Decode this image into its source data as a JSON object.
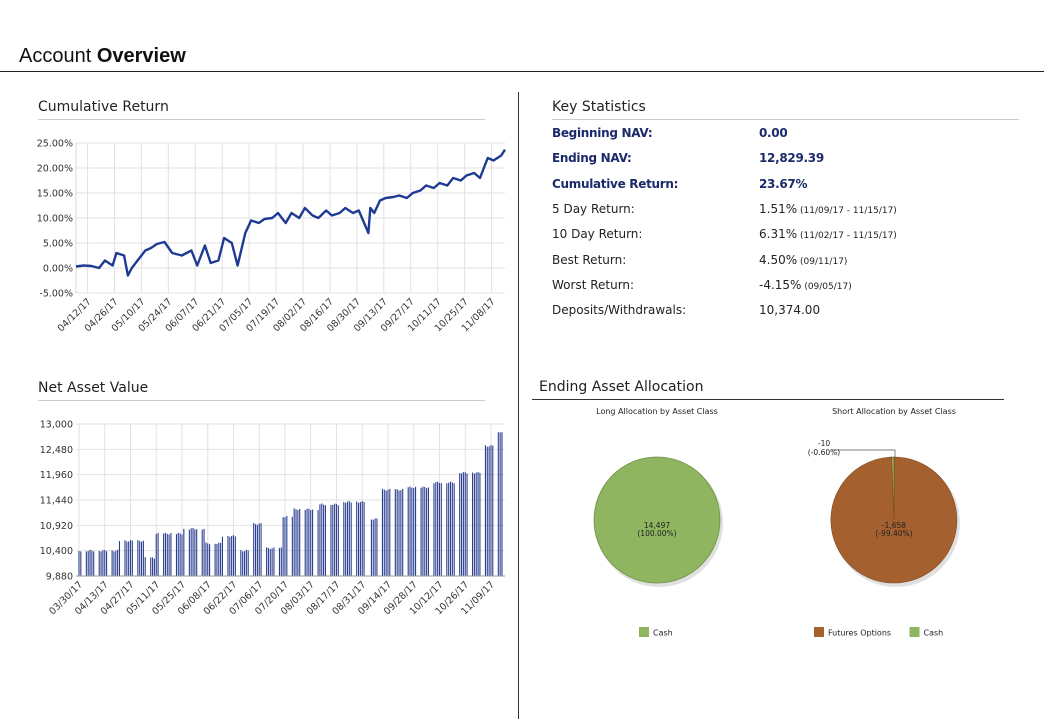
{
  "page": {
    "title_normal": "Account",
    "title_bold": "Overview"
  },
  "sections": {
    "cumulative_return": "Cumulative Return",
    "net_asset_value": "Net Asset Value",
    "key_statistics": "Key Statistics",
    "ending_asset_allocation": "Ending Asset Allocation"
  },
  "colors": {
    "line": "#1f3a93",
    "bar": "#2a3d8f",
    "cash": "#8fb560",
    "futures_options": "#a4612f",
    "grid": "#e2e2e2"
  },
  "key_statistics": [
    {
      "label": "Beginning NAV:",
      "value": "0.00",
      "note": "",
      "bold": true
    },
    {
      "label": "Ending NAV:",
      "value": "12,829.39",
      "note": "",
      "bold": true
    },
    {
      "label": "Cumulative Return:",
      "value": "23.67%",
      "note": "",
      "bold": true
    },
    {
      "label": "5 Day Return:",
      "value": "1.51%",
      "note": "(11/09/17 - 11/15/17)",
      "bold": false
    },
    {
      "label": "10 Day Return:",
      "value": "6.31%",
      "note": "(11/02/17 - 11/15/17)",
      "bold": false
    },
    {
      "label": "Best Return:",
      "value": "4.50%",
      "note": "(09/11/17)",
      "bold": false
    },
    {
      "label": "Worst Return:",
      "value": "-4.15%",
      "note": "(09/05/17)",
      "bold": false
    },
    {
      "label": "Deposits/Withdrawals:",
      "value": "10,374.00",
      "note": "",
      "bold": false
    }
  ],
  "chart_data": [
    {
      "type": "line",
      "title": "Cumulative Return",
      "xlabel": "",
      "ylabel": "",
      "ylim": [
        -5,
        25
      ],
      "y_ticks": [
        "25.00%",
        "20.00%",
        "15.00%",
        "10.00%",
        "5.00%",
        "0.00%",
        "-5.00%"
      ],
      "x_ticks": [
        "04/12/17",
        "04/26/17",
        "05/10/17",
        "05/24/17",
        "06/07/17",
        "06/21/17",
        "07/05/17",
        "07/19/17",
        "08/02/17",
        "08/16/17",
        "08/30/17",
        "09/13/17",
        "09/27/17",
        "10/11/17",
        "10/25/17",
        "11/08/17"
      ],
      "grid": true,
      "series": [
        {
          "x": [
            "04/06/17",
            "04/10/17",
            "04/14/17",
            "04/18/17",
            "04/21/17",
            "04/25/17",
            "04/27/17",
            "05/01/17",
            "05/03/17",
            "05/05/17",
            "05/09/17",
            "05/12/17",
            "05/15/17",
            "05/18/17",
            "05/22/17",
            "05/26/17",
            "05/31/17",
            "06/05/17",
            "06/08/17",
            "06/12/17",
            "06/15/17",
            "06/19/17",
            "06/22/17",
            "06/26/17",
            "06/29/17",
            "07/03/17",
            "07/06/17",
            "07/10/17",
            "07/13/17",
            "07/17/17",
            "07/20/17",
            "07/24/17",
            "07/27/17",
            "07/31/17",
            "08/03/17",
            "08/07/17",
            "08/10/17",
            "08/14/17",
            "08/17/17",
            "08/21/17",
            "08/24/17",
            "08/28/17",
            "08/31/17",
            "09/05/17",
            "09/06/17",
            "09/08/17",
            "09/11/17",
            "09/14/17",
            "09/18/17",
            "09/21/17",
            "09/25/17",
            "09/28/17",
            "10/02/17",
            "10/05/17",
            "10/09/17",
            "10/12/17",
            "10/16/17",
            "10/19/17",
            "10/23/17",
            "10/26/17",
            "10/30/17",
            "11/02/17",
            "11/06/17",
            "11/09/17",
            "11/13/17",
            "11/15/17"
          ],
          "values": [
            0.3,
            0.5,
            0.4,
            0.0,
            1.5,
            0.5,
            3.0,
            2.5,
            -1.5,
            0.0,
            2.0,
            3.5,
            4.0,
            4.8,
            5.2,
            3.0,
            2.5,
            3.5,
            0.5,
            4.5,
            1.0,
            1.5,
            6.0,
            5.0,
            0.5,
            7.0,
            9.5,
            9.0,
            9.8,
            10.0,
            11.0,
            9.0,
            11.0,
            10.0,
            12.0,
            10.5,
            10.0,
            11.5,
            10.5,
            11.0,
            12.0,
            11.0,
            11.5,
            7.0,
            12.0,
            11.0,
            13.5,
            14.0,
            14.2,
            14.5,
            14.0,
            15.0,
            15.5,
            16.5,
            16.0,
            17.0,
            16.5,
            18.0,
            17.5,
            18.5,
            19.0,
            18.0,
            22.0,
            21.5,
            22.5,
            23.67
          ]
        }
      ]
    },
    {
      "type": "bar",
      "title": "Net Asset Value",
      "xlabel": "",
      "ylabel": "",
      "ylim": [
        9880,
        13000
      ],
      "y_ticks": [
        "13,000",
        "12,480",
        "11,960",
        "11,440",
        "10,920",
        "10,400",
        "9,880"
      ],
      "x_ticks": [
        "03/30/17",
        "04/13/17",
        "04/27/17",
        "05/11/17",
        "05/25/17",
        "06/08/17",
        "06/22/17",
        "07/06/17",
        "07/20/17",
        "08/03/17",
        "08/17/17",
        "08/31/17",
        "09/14/17",
        "09/28/17",
        "10/12/17",
        "10/26/17",
        "11/09/17"
      ],
      "grid": true,
      "bar_levels": [
        {
          "from": "03/30/17",
          "to": "04/20/17",
          "value": 10400
        },
        {
          "from": "04/21/17",
          "to": "05/04/17",
          "value": 10600
        },
        {
          "from": "05/05/17",
          "to": "05/10/17",
          "value": 10250
        },
        {
          "from": "05/11/17",
          "to": "05/25/17",
          "value": 10750
        },
        {
          "from": "05/26/17",
          "to": "06/06/17",
          "value": 10850
        },
        {
          "from": "06/07/17",
          "to": "06/15/17",
          "value": 10550
        },
        {
          "from": "06/16/17",
          "to": "06/23/17",
          "value": 10700
        },
        {
          "from": "06/26/17",
          "to": "06/30/17",
          "value": 10400
        },
        {
          "from": "07/03/17",
          "to": "07/07/17",
          "value": 10950
        },
        {
          "from": "07/10/17",
          "to": "07/18/17",
          "value": 10450
        },
        {
          "from": "07/19/17",
          "to": "07/24/17",
          "value": 11100
        },
        {
          "from": "07/25/17",
          "to": "08/07/17",
          "value": 11250
        },
        {
          "from": "08/08/17",
          "to": "08/18/17",
          "value": 11350
        },
        {
          "from": "08/21/17",
          "to": "09/01/17",
          "value": 11400
        },
        {
          "from": "09/05/17",
          "to": "09/08/17",
          "value": 11050
        },
        {
          "from": "09/11/17",
          "to": "09/22/17",
          "value": 11650
        },
        {
          "from": "09/25/17",
          "to": "10/06/17",
          "value": 11700
        },
        {
          "from": "10/09/17",
          "to": "10/20/17",
          "value": 11800
        },
        {
          "from": "10/23/17",
          "to": "11/03/17",
          "value": 12000
        },
        {
          "from": "11/06/17",
          "to": "11/10/17",
          "value": 12550
        },
        {
          "from": "11/13/17",
          "to": "11/15/17",
          "value": 12829.39
        }
      ]
    },
    {
      "type": "pie",
      "title": "Long Allocation by Asset Class",
      "labels": [
        "Cash"
      ],
      "values": [
        14497
      ],
      "slice_labels": [
        {
          "value": "14,497",
          "percent": "(100.00%)"
        }
      ],
      "legend": [
        "Cash"
      ]
    },
    {
      "type": "pie",
      "title": "Short Allocation by Asset Class",
      "labels": [
        "Futures Options",
        "Cash"
      ],
      "values": [
        -1658,
        -10
      ],
      "slice_labels": [
        {
          "value": "-1,658",
          "percent": "(-99.40%)"
        },
        {
          "value": "-10",
          "percent": "(-0.60%)"
        }
      ],
      "legend": [
        "Futures Options",
        "Cash"
      ]
    }
  ]
}
